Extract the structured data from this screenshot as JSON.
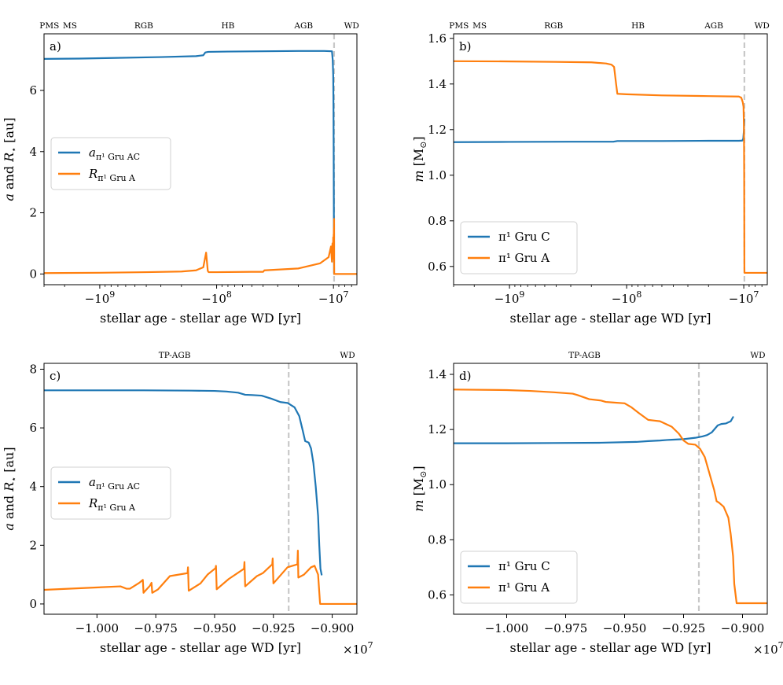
{
  "figure": {
    "colors": {
      "blue": "#1f77b4",
      "orange": "#ff7f0e",
      "vline": "#c8c8c8"
    }
  },
  "chart_data": [
    {
      "panel": "a)",
      "type": "line",
      "xscale": "symlog",
      "xlabel": "stellar age - stellar age WD [yr]",
      "ylabel_html": "<tspan font-style='italic'>a</tspan> and <tspan font-style='italic'>R</tspan><tspan font-size='11' dy='4'>⋆</tspan><tspan dy='-4'> [au]</tspan>",
      "ylabel_text": "a and R⋆ [au]",
      "xlim": [
        -3000000000,
        -6300000
      ],
      "ylim": [
        -0.35,
        7.85
      ],
      "yticks": [
        0,
        2,
        4,
        6
      ],
      "xticks": [
        {
          "value": -1000000000,
          "label_base": "−10",
          "label_exp": "9"
        },
        {
          "value": -100000000,
          "label_base": "−10",
          "label_exp": "8"
        },
        {
          "value": -10000000,
          "label_base": "−10",
          "label_exp": "7"
        }
      ],
      "stages": [
        {
          "label": "PMS",
          "x": -2700000000
        },
        {
          "label": "MS",
          "x": -1800000000
        },
        {
          "label": "RGB",
          "x": -420000000
        },
        {
          "label": "HB",
          "x": -80000000
        },
        {
          "label": "AGB",
          "x": -18000000
        },
        {
          "label": "WD",
          "x": -7000000
        }
      ],
      "vline_x": -9880000,
      "legend": [
        {
          "label": "a",
          "sub": "π¹ Gru AC",
          "color": "#1f77b4"
        },
        {
          "label": "R",
          "sub": "π¹ Gru A",
          "color": "#ff7f0e"
        }
      ],
      "series": [
        {
          "name": "a π1 Gru AC",
          "color": "#1f77b4",
          "x": [
            -3000000000,
            -1500000000,
            -800000000,
            -300000000,
            -150000000,
            -130000000,
            -125000000,
            -118000000,
            -80000000,
            -40000000,
            -20000000,
            -12000000,
            -10300000,
            -10150000,
            -10050000,
            -10000000,
            -9960000,
            -9930000,
            -9900000,
            -9880000
          ],
          "y": [
            7.03,
            7.04,
            7.06,
            7.09,
            7.12,
            7.15,
            7.24,
            7.26,
            7.27,
            7.28,
            7.29,
            7.29,
            7.28,
            7.0,
            6.5,
            5.5,
            4.0,
            2.5,
            0.8,
            0.0
          ]
        },
        {
          "name": "R π1 Gru A",
          "color": "#ff7f0e",
          "x": [
            -3000000000,
            -1000000000,
            -400000000,
            -200000000,
            -150000000,
            -130000000,
            -123000000,
            -121000000,
            -119000000,
            -117000000,
            -100000000,
            -50000000,
            -40000000,
            -39000000,
            -20000000,
            -13000000,
            -11000000,
            -10500000,
            -10300000,
            -10200000,
            -10100000,
            -10050000,
            -10000000,
            -9960000,
            -9940000,
            -9920000,
            -9900000,
            -9880000,
            -9860000,
            -9800000,
            -6300000
          ],
          "y": [
            0.03,
            0.04,
            0.06,
            0.08,
            0.12,
            0.22,
            0.7,
            0.4,
            0.1,
            0.06,
            0.06,
            0.07,
            0.07,
            0.12,
            0.18,
            0.35,
            0.55,
            0.9,
            0.4,
            1.0,
            0.5,
            1.2,
            0.6,
            1.3,
            0.7,
            1.5,
            0.9,
            1.8,
            0.0,
            0.0,
            0.0
          ]
        }
      ]
    },
    {
      "panel": "b)",
      "type": "line",
      "xscale": "symlog",
      "xlabel": "stellar age - stellar age WD [yr]",
      "ylabel_html": "<tspan font-style='italic'>m</tspan> [M<tspan font-size='11' dy='4'>⊙</tspan><tspan dy='-4'>]</tspan>",
      "ylabel_text": "m [M⊙]",
      "xlim": [
        -3000000000,
        -6300000
      ],
      "ylim": [
        0.52,
        1.62
      ],
      "yticks": [
        0.6,
        0.8,
        1.0,
        1.2,
        1.4,
        1.6
      ],
      "xticks": [
        {
          "value": -1000000000,
          "label_base": "−10",
          "label_exp": "9"
        },
        {
          "value": -100000000,
          "label_base": "−10",
          "label_exp": "8"
        },
        {
          "value": -10000000,
          "label_base": "−10",
          "label_exp": "7"
        }
      ],
      "stages": [
        {
          "label": "PMS",
          "x": -2700000000
        },
        {
          "label": "MS",
          "x": -1800000000
        },
        {
          "label": "RGB",
          "x": -420000000
        },
        {
          "label": "HB",
          "x": -80000000
        },
        {
          "label": "AGB",
          "x": -18000000
        },
        {
          "label": "WD",
          "x": -7000000
        }
      ],
      "vline_x": -9880000,
      "legend": [
        {
          "label": "π¹ Gru C",
          "sub": "",
          "color": "#1f77b4"
        },
        {
          "label": "π¹ Gru A",
          "sub": "",
          "color": "#ff7f0e"
        }
      ],
      "series": [
        {
          "name": "π1 Gru C",
          "color": "#1f77b4",
          "x": [
            -3000000000,
            -1000000000,
            -300000000,
            -130000000,
            -120000000,
            -50000000,
            -20000000,
            -11000000,
            -10300000,
            -10100000,
            -9960000,
            -9920000,
            -9880000
          ],
          "y": [
            1.145,
            1.146,
            1.147,
            1.147,
            1.15,
            1.15,
            1.151,
            1.151,
            1.152,
            1.16,
            1.2,
            1.23,
            1.245
          ]
        },
        {
          "name": "π1 Gru A",
          "color": "#ff7f0e",
          "x": [
            -3000000000,
            -1000000000,
            -400000000,
            -200000000,
            -150000000,
            -135000000,
            -128000000,
            -123000000,
            -120000000,
            -100000000,
            -50000000,
            -20000000,
            -11000000,
            -10500000,
            -10200000,
            -10050000,
            -9960000,
            -9920000,
            -9880000,
            -9860000,
            -9800000,
            -6300000
          ],
          "y": [
            1.5,
            1.499,
            1.497,
            1.495,
            1.49,
            1.485,
            1.475,
            1.4,
            1.357,
            1.355,
            1.35,
            1.347,
            1.345,
            1.34,
            1.32,
            1.3,
            1.2,
            1.0,
            0.6,
            0.572,
            0.572,
            0.572
          ]
        }
      ]
    },
    {
      "panel": "c)",
      "type": "line",
      "xscale": "linear",
      "xlabel": "stellar age - stellar age WD [yr]",
      "offset_label_base": "×10",
      "offset_label_exp": "7",
      "ylabel_html": "<tspan font-style='italic'>a</tspan> and <tspan font-style='italic'>R</tspan><tspan font-size='11' dy='4'>⋆</tspan><tspan dy='-4'> [au]</tspan>",
      "ylabel_text": "a and R⋆ [au]",
      "xlim": [
        -1.0225,
        -0.8895
      ],
      "ylim": [
        -0.35,
        8.2
      ],
      "yticks": [
        0,
        2,
        4,
        6,
        8
      ],
      "xticks": [
        {
          "value": -1.0,
          "label_base": "−1.000",
          "label_exp": ""
        },
        {
          "value": -0.975,
          "label_base": "−0.975",
          "label_exp": ""
        },
        {
          "value": -0.95,
          "label_base": "−0.950",
          "label_exp": ""
        },
        {
          "value": -0.925,
          "label_base": "−0.925",
          "label_exp": ""
        },
        {
          "value": -0.9,
          "label_base": "−0.900",
          "label_exp": ""
        }
      ],
      "stages": [
        {
          "label": "TP-AGB",
          "x": -0.967
        },
        {
          "label": "WD",
          "x": -0.8935
        }
      ],
      "vline_x": -0.9185,
      "legend": [
        {
          "label": "a",
          "sub": "π¹ Gru AC",
          "color": "#1f77b4"
        },
        {
          "label": "R",
          "sub": "π¹ Gru A",
          "color": "#ff7f0e"
        }
      ],
      "series": [
        {
          "name": "a π1 Gru AC",
          "color": "#1f77b4",
          "x": [
            -1.0225,
            -1.0,
            -0.98,
            -0.96,
            -0.95,
            -0.945,
            -0.94,
            -0.937,
            -0.934,
            -0.93,
            -0.926,
            -0.922,
            -0.919,
            -0.916,
            -0.914,
            -0.9125,
            -0.9115,
            -0.91,
            -0.909,
            -0.908,
            -0.907,
            -0.906,
            -0.9055,
            -0.905,
            -0.9045
          ],
          "y": [
            7.28,
            7.28,
            7.28,
            7.27,
            7.26,
            7.24,
            7.2,
            7.13,
            7.12,
            7.1,
            7.0,
            6.88,
            6.85,
            6.7,
            6.4,
            5.9,
            5.55,
            5.5,
            5.3,
            4.8,
            4.0,
            3.0,
            2.0,
            1.2,
            1.0
          ]
        },
        {
          "name": "R π1 Gru A",
          "color": "#ff7f0e",
          "x": [
            -1.0225,
            -0.99,
            -0.9875,
            -0.986,
            -0.982,
            -0.9805,
            -0.9802,
            -0.98,
            -0.9775,
            -0.9768,
            -0.9765,
            -0.974,
            -0.969,
            -0.9615,
            -0.9613,
            -0.961,
            -0.956,
            -0.953,
            -0.9496,
            -0.9494,
            -0.9491,
            -0.944,
            -0.9375,
            -0.9373,
            -0.937,
            -0.932,
            -0.9295,
            -0.9255,
            -0.9253,
            -0.925,
            -0.919,
            -0.9148,
            -0.9146,
            -0.9144,
            -0.912,
            -0.909,
            -0.9075,
            -0.906,
            -0.9052,
            -0.9051,
            -0.9,
            -0.8895
          ],
          "y": [
            0.48,
            0.6,
            0.52,
            0.52,
            0.72,
            0.82,
            0.38,
            0.4,
            0.62,
            0.72,
            0.38,
            0.5,
            0.95,
            1.05,
            1.25,
            0.45,
            0.7,
            1.0,
            1.22,
            1.3,
            0.5,
            0.85,
            1.2,
            1.43,
            0.6,
            0.95,
            1.05,
            1.35,
            1.55,
            0.7,
            1.25,
            1.35,
            1.82,
            0.9,
            1.0,
            1.25,
            1.3,
            1.0,
            0.05,
            0.0,
            0.0,
            0.0
          ]
        }
      ]
    },
    {
      "panel": "d)",
      "type": "line",
      "xscale": "linear",
      "xlabel": "stellar age - stellar age WD [yr]",
      "offset_label_base": "×10",
      "offset_label_exp": "7",
      "ylabel_html": "<tspan font-style='italic'>m</tspan> [M<tspan font-size='11' dy='4'>⊙</tspan><tspan dy='-4'>]</tspan>",
      "ylabel_text": "m [M⊙]",
      "xlim": [
        -1.0225,
        -0.8895
      ],
      "ylim": [
        0.53,
        1.44
      ],
      "yticks": [
        0.6,
        0.8,
        1.0,
        1.2,
        1.4
      ],
      "xticks": [
        {
          "value": -1.0,
          "label_base": "−1.000",
          "label_exp": ""
        },
        {
          "value": -0.975,
          "label_base": "−0.975",
          "label_exp": ""
        },
        {
          "value": -0.95,
          "label_base": "−0.950",
          "label_exp": ""
        },
        {
          "value": -0.925,
          "label_base": "−0.925",
          "label_exp": ""
        },
        {
          "value": -0.9,
          "label_base": "−0.900",
          "label_exp": ""
        }
      ],
      "stages": [
        {
          "label": "TP-AGB",
          "x": -0.967
        },
        {
          "label": "WD",
          "x": -0.8935
        }
      ],
      "vline_x": -0.9185,
      "legend": [
        {
          "label": "π¹ Gru C",
          "sub": "",
          "color": "#1f77b4"
        },
        {
          "label": "π¹ Gru A",
          "sub": "",
          "color": "#ff7f0e"
        }
      ],
      "series": [
        {
          "name": "π1 Gru C",
          "color": "#1f77b4",
          "x": [
            -1.0225,
            -1.0,
            -0.98,
            -0.96,
            -0.945,
            -0.94,
            -0.935,
            -0.932,
            -0.93,
            -0.925,
            -0.92,
            -0.917,
            -0.915,
            -0.913,
            -0.912,
            -0.9105,
            -0.909,
            -0.907,
            -0.905,
            -0.904
          ],
          "y": [
            1.15,
            1.15,
            1.151,
            1.152,
            1.155,
            1.158,
            1.16,
            1.162,
            1.163,
            1.165,
            1.17,
            1.175,
            1.18,
            1.19,
            1.2,
            1.215,
            1.22,
            1.222,
            1.23,
            1.245
          ]
        },
        {
          "name": "π1 Gru A",
          "color": "#ff7f0e",
          "x": [
            -1.0225,
            -1.0,
            -0.99,
            -0.98,
            -0.972,
            -0.97,
            -0.965,
            -0.96,
            -0.958,
            -0.955,
            -0.95,
            -0.947,
            -0.944,
            -0.94,
            -0.937,
            -0.935,
            -0.93,
            -0.927,
            -0.925,
            -0.923,
            -0.92,
            -0.918,
            -0.916,
            -0.914,
            -0.912,
            -0.911,
            -0.91,
            -0.908,
            -0.906,
            -0.905,
            -0.904,
            -0.9035,
            -0.9025,
            -0.9,
            -0.8895
          ],
          "y": [
            1.345,
            1.343,
            1.34,
            1.335,
            1.33,
            1.325,
            1.31,
            1.305,
            1.3,
            1.298,
            1.295,
            1.28,
            1.26,
            1.235,
            1.232,
            1.23,
            1.21,
            1.185,
            1.16,
            1.148,
            1.145,
            1.13,
            1.1,
            1.04,
            0.98,
            0.94,
            0.935,
            0.92,
            0.88,
            0.82,
            0.74,
            0.64,
            0.57,
            0.57,
            0.57
          ]
        }
      ]
    }
  ]
}
